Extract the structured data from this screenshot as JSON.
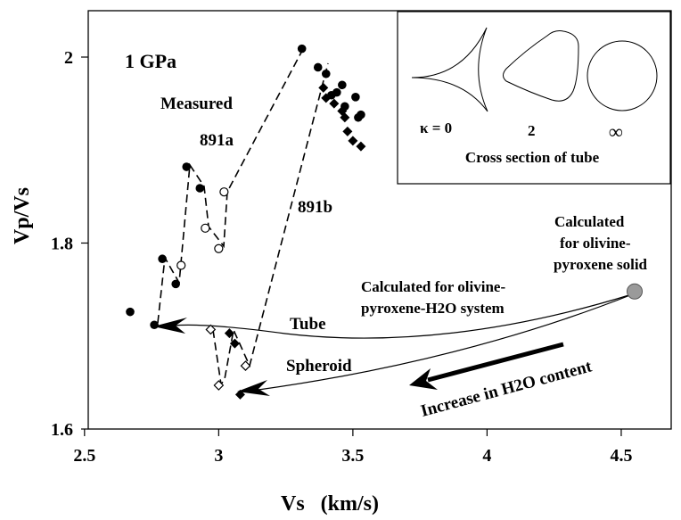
{
  "chart_data": {
    "type": "scatter",
    "title": "1 GPa",
    "xlabel": "Vs   (km/s)",
    "ylabel": "Vp/Vs",
    "xlim": [
      2.5,
      4.7
    ],
    "ylim": [
      1.6,
      2.05
    ],
    "xticks": [
      "2.5",
      "3",
      "3.5",
      "4",
      "4.5"
    ],
    "yticks": [
      "1.6",
      "1.8",
      "2"
    ],
    "x_tick_values": [
      2.5,
      3.0,
      3.5,
      4.0,
      4.5
    ],
    "y_tick_values": [
      1.6,
      1.8,
      2.0
    ],
    "grid": false,
    "series": [
      {
        "name": "891a",
        "marker": "filled-circle",
        "points": [
          {
            "x": 2.67,
            "y": 1.726
          },
          {
            "x": 2.76,
            "y": 1.712
          },
          {
            "x": 2.79,
            "y": 1.783
          },
          {
            "x": 2.84,
            "y": 1.756
          },
          {
            "x": 2.88,
            "y": 1.882
          },
          {
            "x": 2.93,
            "y": 1.859
          },
          {
            "x": 3.31,
            "y": 2.009
          },
          {
            "x": 3.37,
            "y": 1.989
          },
          {
            "x": 3.4,
            "y": 1.982
          },
          {
            "x": 3.42,
            "y": 1.959
          },
          {
            "x": 3.44,
            "y": 1.962
          },
          {
            "x": 3.46,
            "y": 1.97
          },
          {
            "x": 3.47,
            "y": 1.947
          },
          {
            "x": 3.51,
            "y": 1.957
          },
          {
            "x": 3.52,
            "y": 1.935
          },
          {
            "x": 3.53,
            "y": 1.938
          }
        ]
      },
      {
        "name": "891a",
        "marker": "open-circle",
        "points": [
          {
            "x": 2.86,
            "y": 1.776
          },
          {
            "x": 2.95,
            "y": 1.816
          },
          {
            "x": 3.0,
            "y": 1.794
          },
          {
            "x": 3.02,
            "y": 1.855
          }
        ]
      },
      {
        "name": "891b",
        "marker": "filled-diamond",
        "points": [
          {
            "x": 3.04,
            "y": 1.703
          },
          {
            "x": 3.06,
            "y": 1.692
          },
          {
            "x": 3.08,
            "y": 1.637
          },
          {
            "x": 3.39,
            "y": 1.967
          },
          {
            "x": 3.4,
            "y": 1.956
          },
          {
            "x": 3.43,
            "y": 1.95
          },
          {
            "x": 3.46,
            "y": 1.942
          },
          {
            "x": 3.47,
            "y": 1.935
          },
          {
            "x": 3.48,
            "y": 1.92
          },
          {
            "x": 3.5,
            "y": 1.91
          },
          {
            "x": 3.53,
            "y": 1.904
          }
        ]
      },
      {
        "name": "891b",
        "marker": "open-diamond",
        "points": [
          {
            "x": 2.97,
            "y": 1.707
          },
          {
            "x": 3.0,
            "y": 1.647
          },
          {
            "x": 3.1,
            "y": 1.668
          }
        ]
      },
      {
        "name": "Calculated for olivine-pyroxene solid",
        "marker": "big-gray-circle",
        "points": [
          {
            "x": 4.55,
            "y": 1.748
          }
        ]
      }
    ],
    "annotations": {
      "measured": "Measured",
      "label_891a": "891a",
      "label_891b": "891b",
      "calc_solid_1": "Calculated",
      "calc_solid_2": "for olivine-",
      "calc_solid_3": "pyroxene solid",
      "calc_sys_1": "Calculated for olivine-",
      "calc_sys_2": "pyroxene-H2O system",
      "tube": "Tube",
      "spheroid": "Spheroid",
      "increase": "Increase in H2O content"
    },
    "inset": {
      "kappa0": "κ = 0",
      "kappa2": "2",
      "kappa_inf": "∞",
      "caption": "Cross section of tube"
    }
  }
}
